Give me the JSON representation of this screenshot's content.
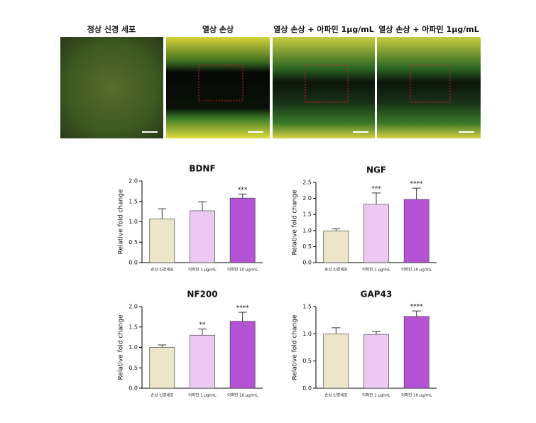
{
  "image_panels": [
    {
      "label": "정상 신경 세포"
    },
    {
      "label": "열상 손상"
    },
    {
      "label": "열상 손상 + 아파민 1μg/mL"
    },
    {
      "label": "열상 손상 + 아파민 1μg/mL"
    }
  ],
  "chart_data": [
    {
      "type": "bar",
      "title": "BDNF",
      "y_label": "Relative fold change",
      "categories": [
        "손상 신경세포",
        "아파민 1 μg/mL",
        "아파민 10 μg/mL"
      ],
      "values": [
        1.07,
        1.27,
        1.58
      ],
      "errors": [
        0.25,
        0.22,
        0.1
      ],
      "significance": [
        null,
        null,
        "***"
      ],
      "colors": [
        "#ede5c9",
        "#ecc9f3",
        "#b453d4"
      ],
      "ylim": [
        0,
        2.0
      ],
      "yticks": [
        {
          "value": 0,
          "label": "0.0"
        },
        0.5,
        {
          "value": 1,
          "label": "1.0"
        },
        1.5,
        {
          "value": 2,
          "label": "2.0"
        }
      ]
    },
    {
      "type": "bar",
      "title": "NGF",
      "y_label": "Relative fold change",
      "categories": [
        "손상 신경세포",
        "아파민 1 μg/mL",
        "아파민 10 μg/mL"
      ],
      "values": [
        0.99,
        1.82,
        1.97
      ],
      "errors": [
        0.06,
        0.35,
        0.35
      ],
      "significance": [
        null,
        "***",
        "****"
      ],
      "colors": [
        "#ede5c9",
        "#ecc9f3",
        "#b453d4"
      ],
      "ylim": [
        0,
        2.5
      ],
      "yticks": [
        {
          "value": 0,
          "label": "0.0"
        },
        0.5,
        {
          "value": 1,
          "label": "1.0"
        },
        1.5,
        {
          "value": 2,
          "label": "2.0"
        },
        2.5
      ]
    },
    {
      "type": "bar",
      "title": "NF200",
      "y_label": "Relative fold change",
      "categories": [
        "손상 신경세포",
        "아파민 1 μg/mL",
        "아파민 10 μg/mL"
      ],
      "values": [
        1.0,
        1.3,
        1.64
      ],
      "errors": [
        0.06,
        0.15,
        0.22
      ],
      "significance": [
        null,
        "**",
        "****"
      ],
      "colors": [
        "#ede5c9",
        "#ecc9f3",
        "#b453d4"
      ],
      "ylim": [
        0,
        2.0
      ],
      "yticks": [
        {
          "value": 0,
          "label": "0.0"
        },
        0.5,
        {
          "value": 1,
          "label": "1.0"
        },
        1.5,
        {
          "value": 2,
          "label": "2.0"
        }
      ]
    },
    {
      "type": "bar",
      "title": "GAP43",
      "y_label": "Relative fold change",
      "categories": [
        "손상 신경세포",
        "아파민 1 μg/mL",
        "아파민 10 μg/mL"
      ],
      "values": [
        1.0,
        0.99,
        1.32
      ],
      "errors": [
        0.11,
        0.05,
        0.1
      ],
      "significance": [
        null,
        null,
        "****"
      ],
      "colors": [
        "#ede5c9",
        "#ecc9f3",
        "#b453d4"
      ],
      "ylim": [
        0,
        1.5
      ],
      "yticks": [
        {
          "value": 0,
          "label": "0.0"
        },
        0.5,
        {
          "value": 1,
          "label": "1.0"
        },
        1.5
      ]
    }
  ]
}
